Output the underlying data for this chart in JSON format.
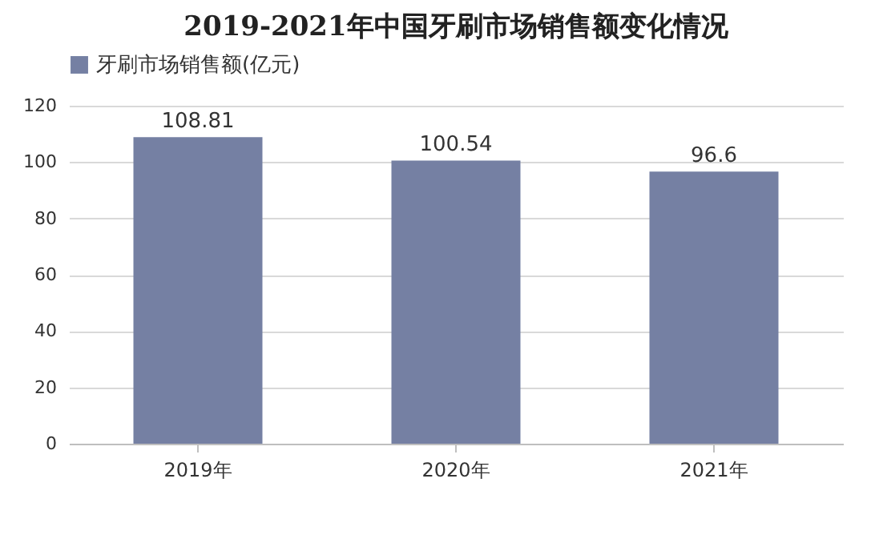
{
  "chart_data": {
    "type": "bar",
    "title": "2019-2021年中国牙刷市场销售额变化情况",
    "categories": [
      "2019年",
      "2020年",
      "2021年"
    ],
    "series": [
      {
        "name": "牙刷市场销售额(亿元)",
        "color": "#7580a3",
        "values": [
          108.81,
          100.54,
          96.6
        ]
      }
    ],
    "ylim": [
      0,
      120
    ],
    "yticks": [
      0,
      20,
      40,
      60,
      80,
      100,
      120
    ],
    "grid": "y",
    "legend": "top",
    "data_labels": true
  }
}
